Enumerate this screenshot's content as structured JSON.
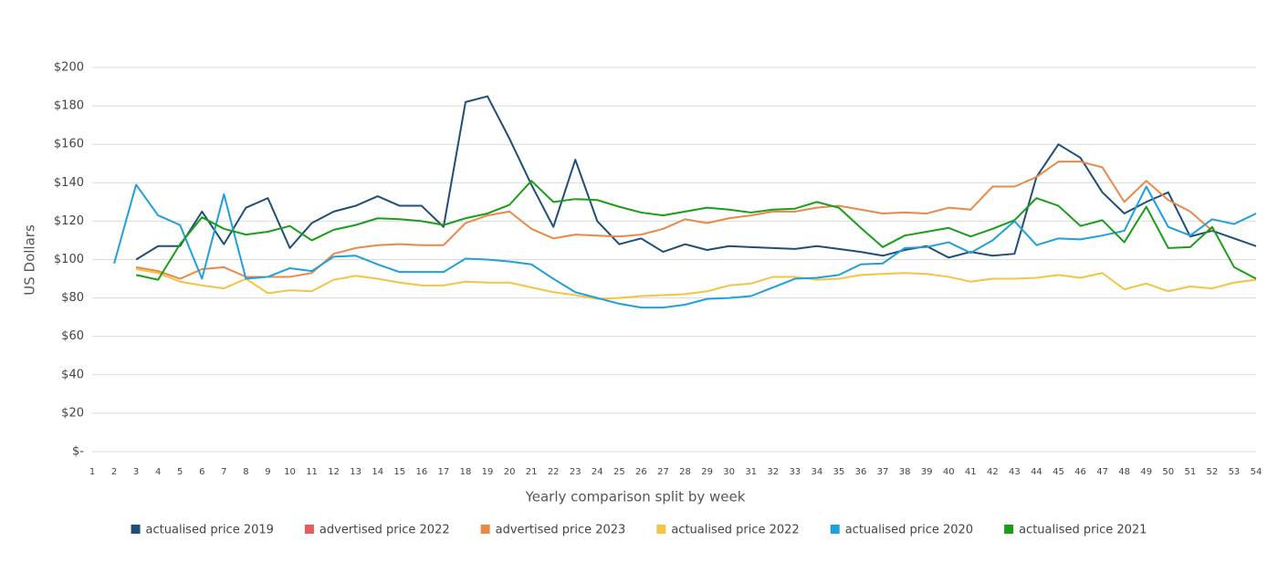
{
  "chart_data": {
    "type": "line",
    "x_label": "Yearly comparison split by week",
    "y_label": "US Dollars",
    "categories": [
      "1",
      "2",
      "3",
      "4",
      "5",
      "6",
      "7",
      "8",
      "9",
      "10",
      "11",
      "12",
      "13",
      "14",
      "15",
      "16",
      "17",
      "18",
      "19",
      "20",
      "21",
      "22",
      "23",
      "24",
      "25",
      "26",
      "27",
      "28",
      "29",
      "30",
      "31",
      "32",
      "33",
      "34",
      "35",
      "36",
      "37",
      "38",
      "39",
      "40",
      "41",
      "42",
      "43",
      "44",
      "45",
      "46",
      "47",
      "48",
      "49",
      "50",
      "51",
      "52",
      "53",
      "54"
    ],
    "ylim": [
      0,
      200
    ],
    "yticks": [
      {
        "value": 0,
        "label": "$-"
      },
      {
        "value": 20,
        "label": "$20"
      },
      {
        "value": 40,
        "label": "$40"
      },
      {
        "value": 60,
        "label": "$60"
      },
      {
        "value": 80,
        "label": "$80"
      },
      {
        "value": 100,
        "label": "$100"
      },
      {
        "value": 120,
        "label": "$120"
      },
      {
        "value": 140,
        "label": "$140"
      },
      {
        "value": 160,
        "label": "$160"
      },
      {
        "value": 180,
        "label": "$180"
      },
      {
        "value": 200,
        "label": "$200"
      }
    ],
    "grid": true,
    "legend": "bottom",
    "series": [
      {
        "name": "actualised price 2019",
        "color": "#1f4e79",
        "values": [
          null,
          null,
          100,
          107,
          107,
          125,
          108,
          127,
          132,
          106,
          119,
          125,
          128,
          133,
          128,
          128,
          117,
          182,
          185,
          163,
          139,
          117,
          152,
          120,
          108,
          111,
          104,
          108,
          105,
          107,
          106.5,
          106,
          105.5,
          107,
          105.5,
          104,
          102,
          105,
          107,
          101,
          104,
          102,
          103,
          143,
          160,
          153,
          135,
          124,
          130,
          135,
          112,
          115,
          111,
          107
        ]
      },
      {
        "name": "advertised price 2022",
        "color": "#e85b5b",
        "values": [
          null,
          null,
          null,
          null,
          null,
          null,
          null,
          null,
          null,
          null,
          null,
          null,
          null,
          null,
          null,
          null,
          null,
          null,
          null,
          null,
          null,
          null,
          null,
          null,
          null,
          null,
          null,
          null,
          null,
          null,
          null,
          null,
          null,
          null,
          null,
          null,
          null,
          null,
          null,
          null,
          null,
          null,
          null,
          null,
          null,
          null,
          null,
          null,
          null,
          null,
          null,
          null,
          null,
          null
        ]
      },
      {
        "name": "advertised price 2023",
        "color": "#e8894a",
        "values": [
          null,
          null,
          96,
          94,
          90,
          95,
          96,
          91,
          91,
          91,
          93,
          103,
          106,
          107.5,
          108,
          107.5,
          107.5,
          119,
          123,
          125,
          116,
          111,
          113,
          112.5,
          112,
          113,
          116,
          121,
          119,
          121.5,
          123,
          125,
          125,
          127,
          128,
          126,
          124,
          124.5,
          124,
          127,
          126,
          138,
          138,
          143,
          151,
          151,
          148,
          130,
          141,
          131,
          125,
          115,
          null,
          null
        ]
      },
      {
        "name": "actualised price 2022",
        "color": "#f5c342",
        "values": [
          null,
          null,
          95,
          93,
          88.5,
          86.5,
          85,
          90,
          82.5,
          84,
          83.5,
          89.5,
          91.5,
          90,
          88,
          86.5,
          86.5,
          88.5,
          88,
          88,
          85.5,
          83,
          81.5,
          79.5,
          80,
          81,
          81.5,
          82,
          83.5,
          86.5,
          87.5,
          91,
          91,
          89.5,
          90,
          92,
          92.5,
          93,
          92.5,
          91,
          88.5,
          90,
          90,
          90.5,
          92,
          90.5,
          93,
          84.5,
          87.5,
          83.5,
          86,
          85,
          88,
          89.5
        ]
      },
      {
        "name": "actualised price 2020",
        "color": "#1fa0dc",
        "values": [
          null,
          98,
          139,
          123,
          118,
          90,
          134,
          90,
          91,
          95.5,
          94,
          101.5,
          102,
          97.5,
          93.5,
          93.5,
          93.5,
          100.5,
          100,
          99,
          97.5,
          90,
          83,
          80,
          77,
          75,
          75,
          76.5,
          79.5,
          80,
          81,
          85.5,
          90,
          90.5,
          92,
          97.5,
          98,
          106,
          106.5,
          109,
          103.5,
          110,
          120,
          107.5,
          111,
          110.5,
          112.5,
          115,
          138,
          117,
          112.5,
          121,
          118.5,
          124
        ]
      },
      {
        "name": "actualised price 2021",
        "color": "#1a9e1a",
        "values": [
          null,
          null,
          92,
          89.5,
          108,
          122,
          116,
          113,
          114.5,
          117.5,
          110,
          115.5,
          118,
          121.5,
          121,
          120,
          118,
          121.5,
          124,
          128.5,
          141,
          130,
          131.5,
          131,
          127.5,
          124.5,
          123,
          125,
          127,
          126,
          124.5,
          126,
          126.5,
          130,
          127,
          116.5,
          106.5,
          112.5,
          114.5,
          116.5,
          112,
          116,
          120.5,
          132,
          128,
          117.5,
          120.5,
          109,
          127.5,
          106,
          106.5,
          117,
          96,
          90
        ]
      }
    ]
  }
}
